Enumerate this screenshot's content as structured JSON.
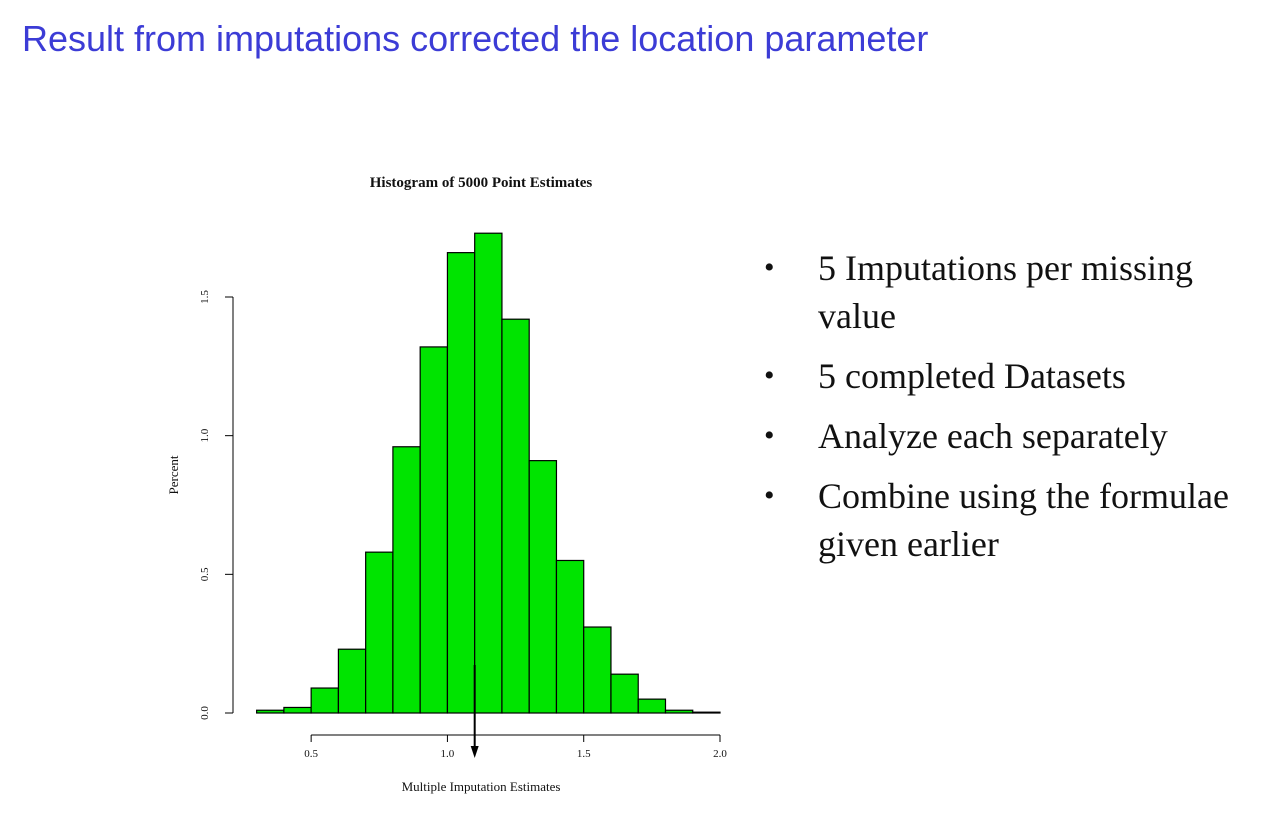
{
  "slide": {
    "title": "Result from imputations corrected the location parameter"
  },
  "bullets": [
    "5 Imputations per missing value",
    "5 completed Datasets",
    "Analyze each separately",
    "Combine using the formulae given earlier"
  ],
  "chart_data": {
    "type": "bar",
    "title": "Histogram of 5000 Point Estimates",
    "xlabel": "Multiple Imputation Estimates",
    "ylabel": "Percent",
    "xlim": [
      0.25,
      2.0
    ],
    "ylim": [
      0,
      1.5
    ],
    "xticks": [
      "0.5",
      "1.0",
      "1.5",
      "2.0"
    ],
    "yticks": [
      "0.0",
      "0.5",
      "1.0",
      "1.5"
    ],
    "bin_width": 0.1,
    "bin_starts": [
      0.3,
      0.4,
      0.5,
      0.6,
      0.7,
      0.8,
      0.9,
      1.0,
      1.1,
      1.2,
      1.3,
      1.4,
      1.5,
      1.6,
      1.7,
      1.8,
      1.9
    ],
    "values": [
      0.01,
      0.02,
      0.09,
      0.23,
      0.58,
      0.96,
      1.32,
      1.66,
      1.73,
      1.42,
      0.91,
      0.55,
      0.31,
      0.14,
      0.05,
      0.01,
      0.003
    ],
    "bar_color": "#00e400",
    "marker_x": 1.1
  }
}
